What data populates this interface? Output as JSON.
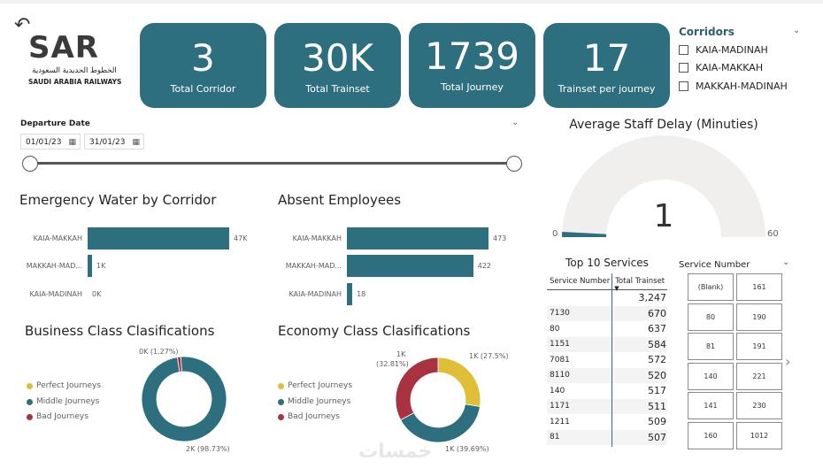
{
  "logo": {
    "mark": "SAR",
    "arabic": "الخطوط الحديدية السعودية",
    "english": "SAUDI ARABIA RAILWAYS"
  },
  "kpis": [
    {
      "value": "3",
      "label": "Total Corridor"
    },
    {
      "value": "30K",
      "label": "Total Trainset"
    },
    {
      "value": "1739",
      "label": "Total Journey"
    },
    {
      "value": "17",
      "label": "Trainset per journey"
    }
  ],
  "corridors": {
    "title": "Corridors",
    "items": [
      "KAIA-MADINAH",
      "KAIA-MAKKAH",
      "MAKKAH-MADINAH"
    ]
  },
  "date_slicer": {
    "title": "Departure Date",
    "start": "01/01/23",
    "end": "31/01/23"
  },
  "gauge": {
    "title": "Average Staff Delay (Minuties)",
    "value": "1",
    "min": "0",
    "max": "60",
    "fraction": 0.0167
  },
  "emergency_water": {
    "title": "Emergency Water by Corridor",
    "categories": [
      "KAIA-MAKKAH",
      "MAKKAH-MAD...",
      "KAIA-MADINAH"
    ],
    "values": [
      47000,
      1000,
      0
    ],
    "labels": [
      "47K",
      "1K",
      "0K"
    ],
    "xmax": 47000
  },
  "absent_employees": {
    "title": "Absent Employees",
    "categories": [
      "KAIA-MAKKAH",
      "MAKKAH-MAD...",
      "KAIA-MADINAH"
    ],
    "values": [
      473,
      422,
      18
    ],
    "labels": [
      "473",
      "422",
      "18"
    ],
    "xmax": 473
  },
  "business_class": {
    "title": "Business Class Clasifications",
    "legend": [
      "Perfect Journeys",
      "Middle Journeys",
      "Bad Journeys"
    ],
    "colors": [
      "#e0bf38",
      "#2e6f7f",
      "#a83240"
    ],
    "values": [
      0,
      98.73,
      1.27
    ],
    "annotations": {
      "bad": "0K (1.27%)",
      "middle": "2K (98.73%)"
    }
  },
  "economy_class": {
    "title": "Economy Class Clasifications",
    "legend": [
      "Perfect Journeys",
      "Middle Journeys",
      "Bad Journeys"
    ],
    "colors": [
      "#e0bf38",
      "#2e6f7f",
      "#a83240"
    ],
    "values": [
      27.5,
      39.69,
      32.81
    ],
    "annotations": {
      "perfect": "1K (27.5%)",
      "middle": "1K (39.69%)",
      "bad_value": "1K",
      "bad_pct": "(32.81%)"
    }
  },
  "top_services": {
    "title": "Top 10 Services",
    "headers": [
      "Service Number",
      "Total Trainset"
    ],
    "rows": [
      [
        "",
        "3,247"
      ],
      [
        "7130",
        "670"
      ],
      [
        "80",
        "637"
      ],
      [
        "1151",
        "584"
      ],
      [
        "7081",
        "572"
      ],
      [
        "8110",
        "520"
      ],
      [
        "140",
        "517"
      ],
      [
        "1171",
        "511"
      ],
      [
        "1211",
        "509"
      ],
      [
        "81",
        "507"
      ]
    ]
  },
  "service_number": {
    "title": "Service Number",
    "tiles": [
      "(Blank)",
      "161",
      "80",
      "190",
      "81",
      "191",
      "140",
      "221",
      "141",
      "230",
      "160",
      "1012"
    ]
  },
  "watermark": "خمسات"
}
